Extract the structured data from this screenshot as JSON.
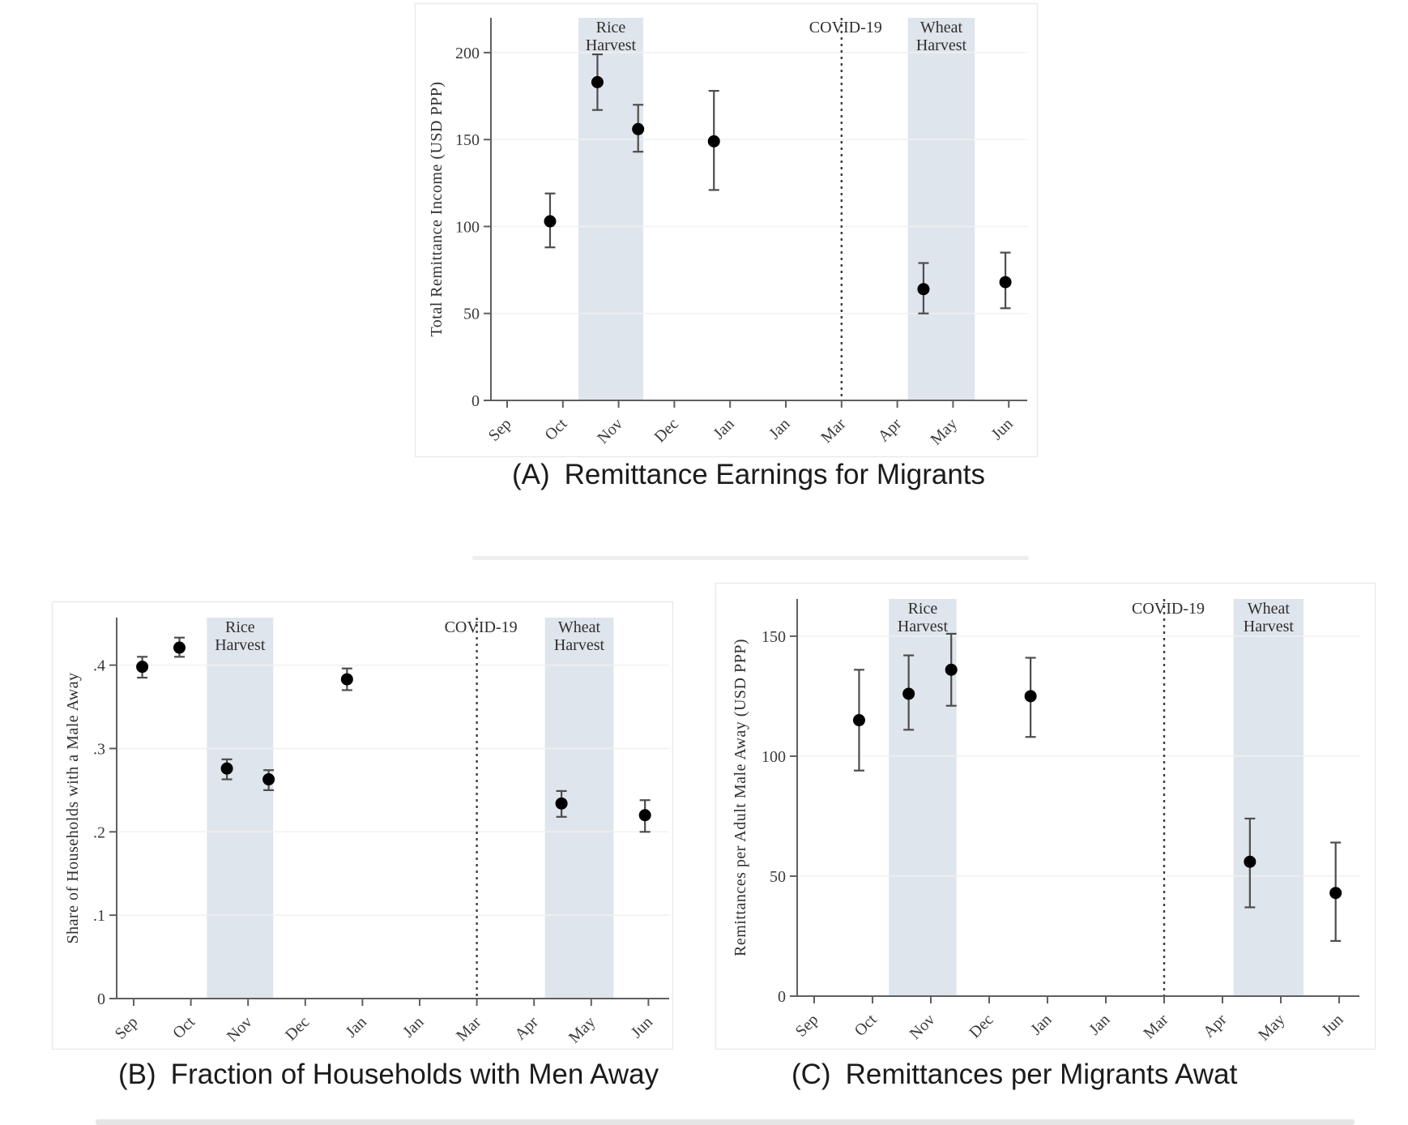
{
  "colors": {
    "harvest_band": "#dfe5ec",
    "marker": "#000000",
    "axis": "#5f5f5f",
    "error_bar": "#4d4d4d",
    "gridline": "#f0f0f0",
    "chart_text": "#2f2f2f",
    "caption_text": "#1b1b1b",
    "panel_border": "#eaeaea",
    "covid_line": "#3f3f3f"
  },
  "chart_data": [
    {
      "id": "A",
      "type": "scatter",
      "caption_prefix": "(A)",
      "caption": "Remittance Earnings for Migrants",
      "ylabel": "Total Remittance Income (USD PPP)",
      "ylim": [
        0,
        220
      ],
      "grid": true,
      "legend": "none",
      "yticks": [
        {
          "v": 0,
          "label": "0"
        },
        {
          "v": 50,
          "label": "50"
        },
        {
          "v": 100,
          "label": "100"
        },
        {
          "v": 150,
          "label": "150"
        },
        {
          "v": 200,
          "label": "200"
        }
      ],
      "xtick_labels": [
        "Sep",
        "Oct",
        "Nov",
        "Dec",
        "Jan",
        "Jan",
        "Mar",
        "Apr",
        "May",
        "Jun"
      ],
      "bands": [
        {
          "label_line1": "Rice",
          "label_line2": "Harvest",
          "from": 1.28,
          "to": 2.44
        },
        {
          "label_line1": "Wheat",
          "label_line2": "Harvest",
          "from": 7.19,
          "to": 8.39
        }
      ],
      "vline": {
        "label": "COVID-19",
        "x": 6
      },
      "points": [
        {
          "x": 0.77,
          "y": 103,
          "lo": 88,
          "hi": 119
        },
        {
          "x": 1.62,
          "y": 183,
          "lo": 167,
          "hi": 199
        },
        {
          "x": 2.35,
          "y": 156,
          "lo": 143,
          "hi": 170
        },
        {
          "x": 3.71,
          "y": 149,
          "lo": 121,
          "hi": 178
        },
        {
          "x": 7.47,
          "y": 64,
          "lo": 50,
          "hi": 79
        },
        {
          "x": 8.94,
          "y": 68,
          "lo": 53,
          "hi": 85
        }
      ]
    },
    {
      "id": "B",
      "type": "scatter",
      "caption_prefix": "(B)",
      "caption": "Fraction of Households with Men Away",
      "ylabel": "Share of Households with a Male Away",
      "ylim": [
        0,
        0.457
      ],
      "grid": true,
      "legend": "none",
      "yticks": [
        {
          "v": 0,
          "label": "0"
        },
        {
          "v": 0.1,
          "label": ".1"
        },
        {
          "v": 0.2,
          "label": ".2"
        },
        {
          "v": 0.3,
          "label": ".3"
        },
        {
          "v": 0.4,
          "label": ".4"
        }
      ],
      "xtick_labels": [
        "Sep",
        "Oct",
        "Nov",
        "Dec",
        "Jan",
        "Jan",
        "Mar",
        "Apr",
        "May",
        "Jun"
      ],
      "bands": [
        {
          "label_line1": "Rice",
          "label_line2": "Harvest",
          "from": 1.28,
          "to": 2.44
        },
        {
          "label_line1": "Wheat",
          "label_line2": "Harvest",
          "from": 7.19,
          "to": 8.39
        }
      ],
      "vline": {
        "label": "COVID-19",
        "x": 6
      },
      "points": [
        {
          "x": 0.15,
          "y": 0.398,
          "lo": 0.385,
          "hi": 0.41
        },
        {
          "x": 0.8,
          "y": 0.421,
          "lo": 0.41,
          "hi": 0.433
        },
        {
          "x": 1.63,
          "y": 0.276,
          "lo": 0.263,
          "hi": 0.287
        },
        {
          "x": 2.36,
          "y": 0.263,
          "lo": 0.25,
          "hi": 0.274
        },
        {
          "x": 3.73,
          "y": 0.383,
          "lo": 0.37,
          "hi": 0.396
        },
        {
          "x": 7.48,
          "y": 0.234,
          "lo": 0.218,
          "hi": 0.249
        },
        {
          "x": 8.94,
          "y": 0.22,
          "lo": 0.2,
          "hi": 0.238
        }
      ]
    },
    {
      "id": "C",
      "type": "scatter",
      "caption_prefix": "(C)",
      "caption": "Remittances per Migrants Awat",
      "ylabel": "Remittances per Adult Male Away (USD PPP)",
      "ylim": [
        0,
        165.5
      ],
      "grid": true,
      "legend": "none",
      "yticks": [
        {
          "v": 0,
          "label": "0"
        },
        {
          "v": 50,
          "label": "50"
        },
        {
          "v": 100,
          "label": "100"
        },
        {
          "v": 150,
          "label": "150"
        }
      ],
      "xtick_labels": [
        "Sep",
        "Oct",
        "Nov",
        "Dec",
        "Jan",
        "Jan",
        "Mar",
        "Apr",
        "May",
        "Jun"
      ],
      "bands": [
        {
          "label_line1": "Rice",
          "label_line2": "Harvest",
          "from": 1.28,
          "to": 2.44
        },
        {
          "label_line1": "Wheat",
          "label_line2": "Harvest",
          "from": 7.19,
          "to": 8.39
        }
      ],
      "vline": {
        "label": "COVID-19",
        "x": 6
      },
      "points": [
        {
          "x": 0.77,
          "y": 115,
          "lo": 94,
          "hi": 136
        },
        {
          "x": 1.62,
          "y": 126,
          "lo": 111,
          "hi": 142
        },
        {
          "x": 2.35,
          "y": 136,
          "lo": 121,
          "hi": 151
        },
        {
          "x": 3.71,
          "y": 125,
          "lo": 108,
          "hi": 141
        },
        {
          "x": 7.47,
          "y": 56,
          "lo": 37,
          "hi": 74
        },
        {
          "x": 8.94,
          "y": 43,
          "lo": 23,
          "hi": 64
        }
      ]
    }
  ]
}
